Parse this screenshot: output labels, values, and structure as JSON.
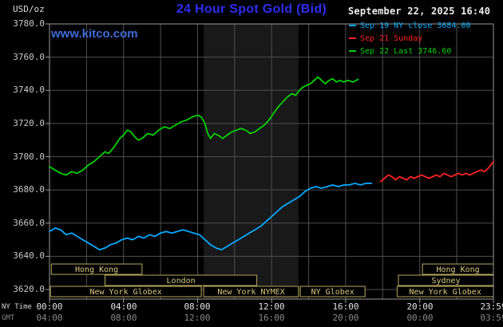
{
  "header": {
    "units_label": "USD/oz",
    "title": "24 Hour Spot Gold (Bid)",
    "datetime": "September 22, 2025 16:40",
    "watermark": "www.kitco.com"
  },
  "legend": {
    "items": [
      {
        "label": "Sep 19 NY close 3684.00",
        "color": "#00aaff"
      },
      {
        "label": "Sep 21 Sunday",
        "color": "#ff2222"
      },
      {
        "label": "Sep 22 Last 3746.60",
        "color": "#00d200"
      }
    ]
  },
  "axes": {
    "y_label_values": [
      "3780.0",
      "3760.0",
      "3740.0",
      "3720.0",
      "3700.0",
      "3680.0",
      "3660.0",
      "3640.0",
      "3620.0"
    ],
    "x_ny_label": "NY Time",
    "x_gmt_label": "GMT",
    "x_ny_ticks": [
      "00:00",
      "04:00",
      "08:00",
      "12:00",
      "16:00",
      "20:00",
      "23:59"
    ],
    "x_gmt_ticks": [
      "04:00",
      "08:00",
      "12:00",
      "16:00",
      "20:00",
      "00:00",
      "03:59"
    ]
  },
  "colors": {
    "title": "#2d2df2",
    "watermark": "#3f6cd8",
    "band": "#191919",
    "grid": "#4f4f4f",
    "border": "#9a9a9a",
    "session": "#b9a85e",
    "session_text": "#d9c97f"
  },
  "chart_data": {
    "type": "line",
    "title": "24 Hour Spot Gold (Bid)",
    "ylabel": "USD/oz",
    "xlabel": "NY Time",
    "y_range": [
      3620,
      3780
    ],
    "y_tick_step": 20,
    "x_range_hours": [
      0,
      23.983
    ],
    "x_tick_hours": [
      0,
      4,
      8,
      12,
      16,
      20,
      23.983
    ],
    "grid": true,
    "legend_position": "top-right",
    "shaded_band_hours": [
      8.33,
      13.45
    ],
    "sessions": [
      [
        {
          "label": "Hong Kong",
          "start": 0.1,
          "end": 5.0
        },
        {
          "label": "Hong Kong",
          "start": 20.15,
          "end": 23.983
        }
      ],
      [
        {
          "label": "London",
          "start": 3.0,
          "end": 11.2
        },
        {
          "label": "Sydney",
          "start": 18.85,
          "end": 23.983
        }
      ],
      [
        {
          "label": "New York Globex",
          "start": 0.05,
          "end": 8.2
        },
        {
          "label": "New York NYMEX",
          "start": 8.33,
          "end": 13.45
        },
        {
          "label": "NY Globex",
          "start": 13.55,
          "end": 17.05
        },
        {
          "label": "New York Globex",
          "start": 18.78,
          "end": 23.983
        }
      ]
    ],
    "series": [
      {
        "name": "Sep 19 NY close 3684.00",
        "color": "#00aaff",
        "close": 3684.0,
        "points": [
          [
            0,
            3655
          ],
          [
            0.3,
            3657
          ],
          [
            0.6,
            3656
          ],
          [
            0.9,
            3653
          ],
          [
            1.2,
            3654
          ],
          [
            1.5,
            3652
          ],
          [
            1.8,
            3650
          ],
          [
            2.1,
            3648
          ],
          [
            2.4,
            3646
          ],
          [
            2.7,
            3644
          ],
          [
            3.0,
            3645
          ],
          [
            3.3,
            3647
          ],
          [
            3.6,
            3648
          ],
          [
            3.9,
            3650
          ],
          [
            4.2,
            3651
          ],
          [
            4.5,
            3650
          ],
          [
            4.8,
            3652
          ],
          [
            5.1,
            3651
          ],
          [
            5.4,
            3653
          ],
          [
            5.7,
            3652
          ],
          [
            6.0,
            3654
          ],
          [
            6.3,
            3655
          ],
          [
            6.6,
            3654
          ],
          [
            6.9,
            3655
          ],
          [
            7.2,
            3656
          ],
          [
            7.5,
            3655
          ],
          [
            7.8,
            3654
          ],
          [
            8.1,
            3653
          ],
          [
            8.4,
            3650
          ],
          [
            8.7,
            3647
          ],
          [
            9.0,
            3645
          ],
          [
            9.3,
            3644
          ],
          [
            9.6,
            3646
          ],
          [
            9.9,
            3648
          ],
          [
            10.2,
            3650
          ],
          [
            10.5,
            3652
          ],
          [
            10.8,
            3654
          ],
          [
            11.1,
            3656
          ],
          [
            11.4,
            3658
          ],
          [
            11.7,
            3661
          ],
          [
            12.0,
            3664
          ],
          [
            12.3,
            3667
          ],
          [
            12.6,
            3670
          ],
          [
            12.9,
            3672
          ],
          [
            13.2,
            3674
          ],
          [
            13.5,
            3676
          ],
          [
            13.8,
            3679
          ],
          [
            14.1,
            3681
          ],
          [
            14.4,
            3682
          ],
          [
            14.7,
            3681
          ],
          [
            15.0,
            3682
          ],
          [
            15.3,
            3683
          ],
          [
            15.6,
            3682
          ],
          [
            15.9,
            3683
          ],
          [
            16.2,
            3683
          ],
          [
            16.5,
            3684
          ],
          [
            16.8,
            3683
          ],
          [
            17.1,
            3684
          ],
          [
            17.4,
            3684
          ]
        ]
      },
      {
        "name": "Sep 21 Sunday",
        "color": "#ff2222",
        "points": [
          [
            17.9,
            3685
          ],
          [
            18.1,
            3687
          ],
          [
            18.3,
            3689
          ],
          [
            18.5,
            3688
          ],
          [
            18.7,
            3686
          ],
          [
            18.9,
            3688
          ],
          [
            19.1,
            3687
          ],
          [
            19.3,
            3686
          ],
          [
            19.5,
            3688
          ],
          [
            19.7,
            3687
          ],
          [
            19.9,
            3688
          ],
          [
            20.1,
            3689
          ],
          [
            20.3,
            3688
          ],
          [
            20.5,
            3687
          ],
          [
            20.7,
            3688
          ],
          [
            20.9,
            3689
          ],
          [
            21.1,
            3688
          ],
          [
            21.3,
            3690
          ],
          [
            21.5,
            3689
          ],
          [
            21.7,
            3688
          ],
          [
            21.9,
            3689
          ],
          [
            22.1,
            3690
          ],
          [
            22.3,
            3689
          ],
          [
            22.5,
            3690
          ],
          [
            22.7,
            3689
          ],
          [
            22.9,
            3690
          ],
          [
            23.1,
            3691
          ],
          [
            23.3,
            3692
          ],
          [
            23.5,
            3691
          ],
          [
            23.7,
            3693
          ],
          [
            23.983,
            3697
          ]
        ]
      },
      {
        "name": "Sep 22 Last 3746.60",
        "color": "#00d200",
        "last": 3746.6,
        "points": [
          [
            0,
            3694
          ],
          [
            0.3,
            3692
          ],
          [
            0.6,
            3690
          ],
          [
            0.9,
            3689
          ],
          [
            1.2,
            3691
          ],
          [
            1.5,
            3690
          ],
          [
            1.8,
            3692
          ],
          [
            2.1,
            3695
          ],
          [
            2.4,
            3697
          ],
          [
            2.7,
            3700
          ],
          [
            3.0,
            3703
          ],
          [
            3.2,
            3702
          ],
          [
            3.5,
            3706
          ],
          [
            3.8,
            3711
          ],
          [
            4.0,
            3713
          ],
          [
            4.2,
            3716
          ],
          [
            4.4,
            3715
          ],
          [
            4.6,
            3712
          ],
          [
            4.8,
            3710
          ],
          [
            5.0,
            3711
          ],
          [
            5.3,
            3714
          ],
          [
            5.6,
            3713
          ],
          [
            5.9,
            3716
          ],
          [
            6.2,
            3718
          ],
          [
            6.5,
            3717
          ],
          [
            6.8,
            3719
          ],
          [
            7.1,
            3721
          ],
          [
            7.4,
            3722
          ],
          [
            7.7,
            3724
          ],
          [
            8.0,
            3725
          ],
          [
            8.2,
            3724
          ],
          [
            8.4,
            3720
          ],
          [
            8.55,
            3714
          ],
          [
            8.7,
            3711
          ],
          [
            8.9,
            3714
          ],
          [
            9.1,
            3713
          ],
          [
            9.35,
            3711
          ],
          [
            9.6,
            3713
          ],
          [
            9.85,
            3715
          ],
          [
            10.1,
            3716
          ],
          [
            10.35,
            3717
          ],
          [
            10.6,
            3716
          ],
          [
            10.85,
            3714
          ],
          [
            11.1,
            3715
          ],
          [
            11.35,
            3717
          ],
          [
            11.6,
            3719
          ],
          [
            11.85,
            3722
          ],
          [
            12.1,
            3726
          ],
          [
            12.35,
            3730
          ],
          [
            12.6,
            3733
          ],
          [
            12.85,
            3736
          ],
          [
            13.1,
            3738
          ],
          [
            13.3,
            3737
          ],
          [
            13.5,
            3740
          ],
          [
            13.7,
            3742
          ],
          [
            13.9,
            3743
          ],
          [
            14.1,
            3744
          ],
          [
            14.3,
            3746
          ],
          [
            14.5,
            3748
          ],
          [
            14.7,
            3746
          ],
          [
            14.9,
            3744
          ],
          [
            15.1,
            3746
          ],
          [
            15.3,
            3747
          ],
          [
            15.5,
            3745
          ],
          [
            15.7,
            3746
          ],
          [
            15.9,
            3745
          ],
          [
            16.1,
            3746
          ],
          [
            16.4,
            3745
          ],
          [
            16.67,
            3746.6
          ]
        ]
      }
    ]
  }
}
